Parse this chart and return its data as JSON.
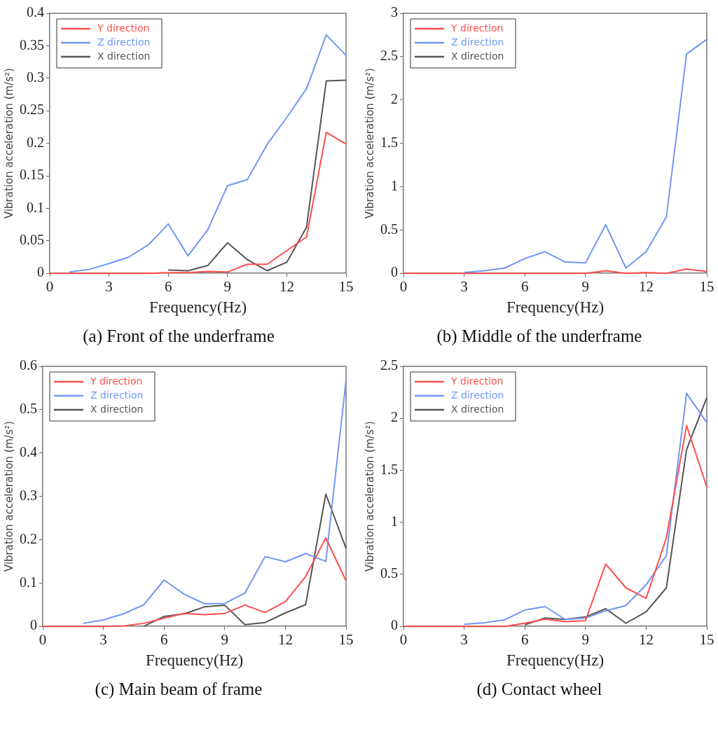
{
  "chart_data": [
    {
      "type": "line",
      "title": "(a) Front of the underframe",
      "xlabel": "Frequency(Hz)",
      "ylabel": "Vibration acceleration (m/s²)",
      "x": [
        0,
        1,
        2,
        3,
        4,
        5,
        6,
        7,
        8,
        9,
        10,
        11,
        12,
        13,
        14,
        15
      ],
      "xlim": [
        0,
        15
      ],
      "xticks": [
        0,
        3,
        6,
        9,
        12,
        15
      ],
      "ylim": [
        0,
        0.4
      ],
      "yticks": [
        0,
        0.05,
        0.1,
        0.15,
        0.2,
        0.25,
        0.3,
        0.35,
        0.4
      ],
      "grid": false,
      "legend": "top left",
      "marker": "none",
      "line_style": "solid",
      "series": [
        {
          "name": "Y direction",
          "color": "#ff4d4d",
          "values": [
            0,
            0,
            0,
            0,
            0,
            0,
            0.001,
            0.001,
            0.003,
            0.002,
            0.014,
            0.014,
            0.035,
            0.056,
            0.217,
            0.199
          ]
        },
        {
          "name": "Z direction",
          "color": "#6f97f5",
          "values": [
            null,
            0.002,
            0.006,
            0.015,
            0.025,
            0.044,
            0.076,
            0.027,
            0.067,
            0.135,
            0.144,
            0.198,
            0.24,
            0.284,
            0.367,
            0.335
          ]
        },
        {
          "name": "X direction",
          "color": "#555555",
          "values": [
            null,
            null,
            null,
            null,
            null,
            null,
            0.005,
            0.004,
            0.012,
            0.047,
            0.021,
            0.004,
            0.017,
            0.071,
            0.296,
            0.297
          ]
        }
      ]
    },
    {
      "type": "line",
      "title": "(b) Middle of the underframe",
      "xlabel": "Frequency(Hz)",
      "ylabel": "Vibration acceleration (m/s²)",
      "x": [
        0,
        1,
        2,
        3,
        4,
        5,
        6,
        7,
        8,
        9,
        10,
        11,
        12,
        13,
        14,
        15
      ],
      "xlim": [
        0,
        15
      ],
      "xticks": [
        0,
        3,
        6,
        9,
        12,
        15
      ],
      "ylim": [
        0,
        3
      ],
      "yticks": [
        0,
        0.5,
        1,
        1.5,
        2,
        2.5,
        3
      ],
      "grid": false,
      "legend": "top left",
      "marker": "none",
      "line_style": "solid",
      "series": [
        {
          "name": "Y direction",
          "color": "#ff4d4d",
          "values": [
            0,
            0,
            0,
            0,
            0,
            0,
            0,
            0,
            0,
            0,
            0.03,
            0,
            0.01,
            0,
            0.05,
            0.02
          ]
        },
        {
          "name": "Z direction",
          "color": "#6f97f5",
          "values": [
            null,
            null,
            null,
            0.01,
            0.03,
            0.06,
            0.17,
            0.25,
            0.13,
            0.12,
            0.56,
            0.06,
            0.25,
            0.65,
            2.53,
            2.7
          ]
        },
        {
          "name": "X direction",
          "color": "#555555",
          "values": [
            null,
            null,
            null,
            null,
            null,
            null,
            null,
            null,
            null,
            null,
            null,
            null,
            null,
            null,
            null,
            null
          ]
        }
      ]
    },
    {
      "type": "line",
      "title": "(c) Main beam of frame",
      "xlabel": "Frequency(Hz)",
      "ylabel": "Vibration acceleration (m/s²)",
      "x": [
        0,
        1,
        2,
        3,
        4,
        5,
        6,
        7,
        8,
        9,
        10,
        11,
        12,
        13,
        14,
        15
      ],
      "xlim": [
        0,
        15
      ],
      "xticks": [
        0,
        3,
        6,
        9,
        12,
        15
      ],
      "ylim": [
        0,
        0.6
      ],
      "yticks": [
        0,
        0.1,
        0.2,
        0.3,
        0.4,
        0.5,
        0.6
      ],
      "grid": false,
      "legend": "top left",
      "marker": "none",
      "line_style": "solid",
      "series": [
        {
          "name": "Y direction",
          "color": "#ff4d4d",
          "values": [
            0,
            0,
            0,
            0,
            0.001,
            0.007,
            0.019,
            0.03,
            0.027,
            0.03,
            0.049,
            0.032,
            0.057,
            0.115,
            0.204,
            0.105
          ]
        },
        {
          "name": "Z direction",
          "color": "#6f97f5",
          "values": [
            null,
            null,
            0.007,
            0.015,
            0.029,
            0.05,
            0.107,
            0.074,
            0.052,
            0.053,
            0.077,
            0.161,
            0.149,
            0.168,
            0.15,
            0.568
          ]
        },
        {
          "name": "X direction",
          "color": "#555555",
          "values": [
            null,
            null,
            null,
            null,
            null,
            0,
            0.023,
            0.029,
            0.045,
            0.049,
            0.004,
            0.009,
            0.031,
            0.05,
            0.305,
            0.18
          ]
        }
      ]
    },
    {
      "type": "line",
      "title": "(d) Contact wheel",
      "xlabel": "Frequency(Hz)",
      "ylabel": "Vibration acceleration (m/s²)",
      "x": [
        0,
        1,
        2,
        3,
        4,
        5,
        6,
        7,
        8,
        9,
        10,
        11,
        12,
        13,
        14,
        15
      ],
      "xlim": [
        0,
        15
      ],
      "xticks": [
        0,
        3,
        6,
        9,
        12,
        15
      ],
      "ylim": [
        0,
        2.5
      ],
      "yticks": [
        0,
        0.5,
        1,
        1.5,
        2,
        2.5
      ],
      "grid": false,
      "legend": "top left",
      "marker": "none",
      "line_style": "solid",
      "series": [
        {
          "name": "Y direction",
          "color": "#ff4d4d",
          "values": [
            0,
            0,
            0,
            0,
            0,
            0,
            0.03,
            0.07,
            0.045,
            0.055,
            0.6,
            0.37,
            0.27,
            0.85,
            1.93,
            1.34
          ]
        },
        {
          "name": "Z direction",
          "color": "#6f97f5",
          "values": [
            null,
            null,
            null,
            0.02,
            0.035,
            0.063,
            0.157,
            0.19,
            0.067,
            0.08,
            0.15,
            0.2,
            0.4,
            0.68,
            2.24,
            1.96
          ]
        },
        {
          "name": "X direction",
          "color": "#555555",
          "values": [
            null,
            null,
            null,
            null,
            null,
            null,
            0.015,
            0.08,
            0.067,
            0.09,
            0.17,
            0.03,
            0.14,
            0.37,
            1.7,
            2.2
          ]
        }
      ]
    }
  ]
}
